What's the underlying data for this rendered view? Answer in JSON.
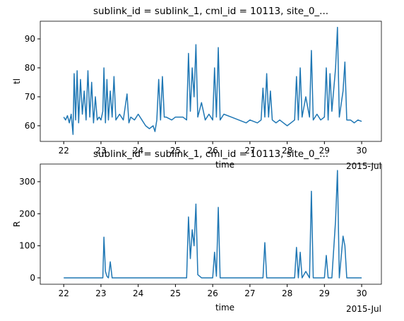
{
  "chart_data": [
    {
      "type": "line",
      "title": "sublink_id = sublink_1, cml_id = 10113, site_0_...",
      "ylabel": "tl",
      "xlabel": "time",
      "x_offset_label": "2015-Jul",
      "color": "#1f77b4",
      "x": [
        22.0,
        22.05,
        22.1,
        22.15,
        22.2,
        22.25,
        22.28,
        22.32,
        22.36,
        22.4,
        22.45,
        22.5,
        22.55,
        22.6,
        22.65,
        22.7,
        22.75,
        22.8,
        22.85,
        22.9,
        22.95,
        23.0,
        23.05,
        23.08,
        23.12,
        23.16,
        23.2,
        23.25,
        23.3,
        23.35,
        23.4,
        23.5,
        23.6,
        23.7,
        23.75,
        23.8,
        23.9,
        24.0,
        24.1,
        24.2,
        24.3,
        24.4,
        24.45,
        24.5,
        24.55,
        24.6,
        24.65,
        24.7,
        24.75,
        24.9,
        25.0,
        25.2,
        25.3,
        25.35,
        25.4,
        25.45,
        25.5,
        25.55,
        25.6,
        25.7,
        25.8,
        25.9,
        26.0,
        26.05,
        26.1,
        26.15,
        26.2,
        26.3,
        26.5,
        26.7,
        26.9,
        27.0,
        27.2,
        27.3,
        27.35,
        27.4,
        27.45,
        27.5,
        27.55,
        27.6,
        27.7,
        27.8,
        27.9,
        28.0,
        28.1,
        28.2,
        28.25,
        28.3,
        28.35,
        28.4,
        28.5,
        28.6,
        28.65,
        28.7,
        28.8,
        28.9,
        29.0,
        29.05,
        29.1,
        29.15,
        29.2,
        29.3,
        29.35,
        29.4,
        29.5,
        29.55,
        29.6,
        29.7,
        29.8,
        29.9,
        30.0
      ],
      "values": [
        63,
        62,
        63.5,
        61,
        64,
        57,
        78,
        62,
        79,
        61,
        76,
        64,
        72,
        62,
        79,
        63,
        75,
        61,
        70,
        62,
        63,
        62,
        65,
        80,
        61,
        76,
        62,
        72,
        63,
        77,
        62,
        64,
        62,
        71,
        61,
        63,
        62,
        64,
        62,
        60,
        59,
        60,
        58,
        62,
        76,
        62,
        77,
        63,
        63,
        62,
        63,
        63,
        62,
        85,
        65,
        80,
        70,
        88,
        63,
        68,
        62,
        64,
        62,
        80,
        63,
        87,
        62,
        64,
        63,
        62,
        61,
        62,
        61,
        62,
        73,
        63,
        78,
        63,
        72,
        62,
        61,
        62,
        61,
        60,
        61,
        62,
        77,
        62,
        80,
        63,
        70,
        63,
        86,
        62,
        64,
        62,
        63,
        80,
        62,
        78,
        65,
        80,
        94,
        63,
        72,
        82,
        62,
        62,
        61,
        62,
        61.5
      ],
      "xlim": [
        21.37,
        30.53
      ],
      "xticks": [
        22,
        23,
        24,
        25,
        26,
        27,
        28,
        29,
        30
      ],
      "ylim": [
        54.6,
        96.1
      ],
      "yticks": [
        60,
        70,
        80,
        90
      ]
    },
    {
      "type": "line",
      "title": "sublink_id = sublink_1, cml_id = 10113, site_0_...",
      "ylabel": "R",
      "xlabel": "time",
      "x_offset_label": "2015-Jul",
      "color": "#1f77b4",
      "x": [
        22.0,
        22.05,
        22.1,
        22.15,
        22.2,
        22.25,
        22.28,
        22.32,
        22.36,
        22.4,
        22.45,
        22.5,
        22.55,
        22.6,
        22.65,
        22.7,
        22.75,
        22.8,
        22.85,
        22.9,
        22.95,
        23.0,
        23.05,
        23.08,
        23.12,
        23.16,
        23.2,
        23.25,
        23.3,
        23.35,
        23.4,
        23.5,
        23.6,
        23.7,
        23.75,
        23.8,
        23.9,
        24.0,
        24.1,
        24.2,
        24.3,
        24.4,
        24.45,
        24.5,
        24.55,
        24.6,
        24.65,
        24.7,
        24.75,
        24.9,
        25.0,
        25.2,
        25.3,
        25.35,
        25.4,
        25.45,
        25.5,
        25.55,
        25.6,
        25.7,
        25.8,
        25.9,
        26.0,
        26.05,
        26.1,
        26.15,
        26.2,
        26.3,
        26.5,
        26.7,
        26.9,
        27.0,
        27.2,
        27.3,
        27.35,
        27.4,
        27.45,
        27.5,
        27.55,
        27.6,
        27.7,
        27.8,
        27.9,
        28.0,
        28.1,
        28.2,
        28.25,
        28.3,
        28.35,
        28.4,
        28.5,
        28.6,
        28.65,
        28.7,
        28.8,
        28.9,
        29.0,
        29.05,
        29.1,
        29.15,
        29.2,
        29.3,
        29.35,
        29.4,
        29.5,
        29.55,
        29.6,
        29.7,
        29.8,
        29.9,
        30.0
      ],
      "values": [
        0,
        0,
        0,
        0,
        0,
        0,
        0,
        0,
        0,
        0,
        0,
        0,
        0,
        0,
        0,
        0,
        0,
        0,
        0,
        0,
        0,
        0,
        0,
        127,
        20,
        5,
        0,
        50,
        0,
        0,
        0,
        0,
        0,
        0,
        0,
        0,
        0,
        0,
        0,
        0,
        0,
        0,
        0,
        0,
        0,
        0,
        0,
        0,
        0,
        0,
        0,
        0,
        0,
        190,
        60,
        150,
        100,
        230,
        10,
        0,
        0,
        0,
        0,
        80,
        5,
        220,
        0,
        0,
        0,
        0,
        0,
        0,
        0,
        0,
        0,
        110,
        0,
        0,
        0,
        0,
        0,
        0,
        0,
        0,
        0,
        0,
        95,
        0,
        80,
        0,
        20,
        0,
        270,
        0,
        0,
        0,
        0,
        70,
        0,
        0,
        0,
        180,
        335,
        0,
        130,
        100,
        0,
        0,
        0,
        0,
        0
      ],
      "xlim": [
        21.37,
        30.53
      ],
      "xticks": [
        22,
        23,
        24,
        25,
        26,
        27,
        28,
        29,
        30
      ],
      "ylim": [
        -19.9,
        355
      ],
      "yticks": [
        0,
        100,
        200,
        300
      ]
    }
  ]
}
